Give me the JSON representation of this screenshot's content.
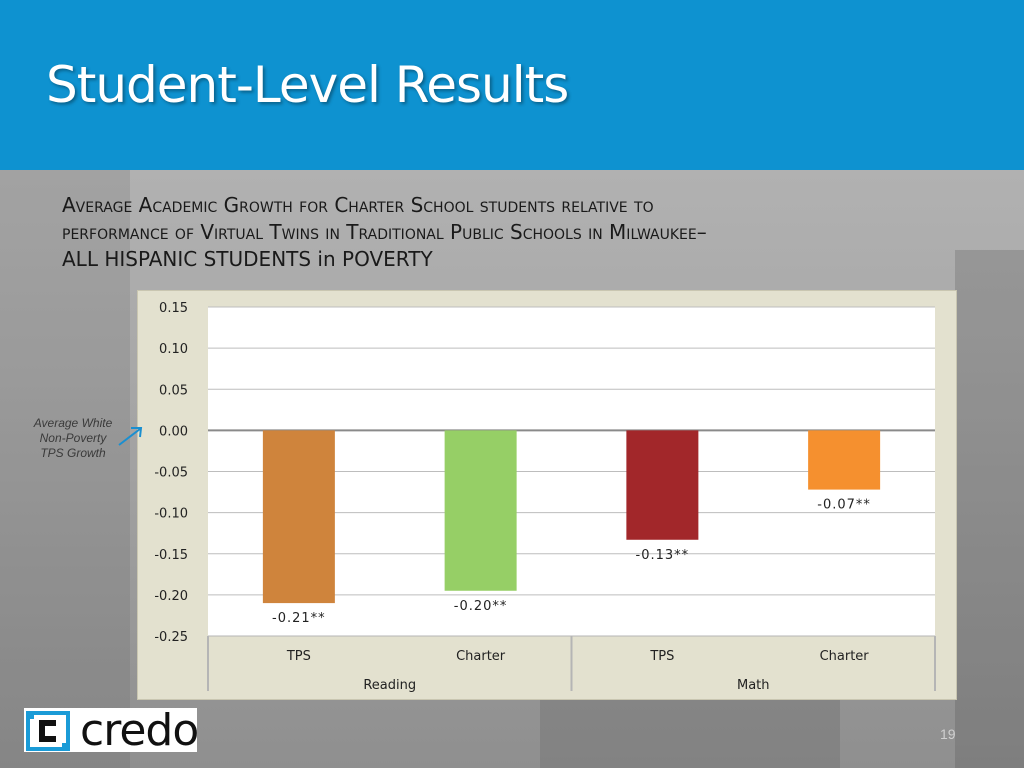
{
  "slide": {
    "title": "Student-Level Results",
    "subtitle_lines": [
      "Average Academic Growth for Charter School students relative to",
      "performance of Virtual Twins in Traditional Public Schools in Milwaukee–",
      "ALL HISPANIC STUDENTS in POVERTY"
    ],
    "annotation": "Average White Non-Poverty TPS Growth",
    "logo_text": "credo",
    "page_number": "19"
  },
  "colors": {
    "header": "#0e92d0",
    "plot_bg": "#ffffff",
    "frame_bg": "#e3e1cf"
  },
  "chart_data": {
    "type": "bar",
    "categories": [
      "TPS",
      "Charter",
      "TPS",
      "Charter"
    ],
    "groups": [
      {
        "label": "Reading",
        "categories": [
          "TPS",
          "Charter"
        ]
      },
      {
        "label": "Math",
        "categories": [
          "TPS",
          "Charter"
        ]
      }
    ],
    "values": [
      -0.21,
      -0.195,
      -0.133,
      -0.072
    ],
    "data_labels": [
      "-0.21**",
      "-0.20**",
      "-0.13**",
      "-0.07**"
    ],
    "bar_colors": [
      "#cf843c",
      "#96cf66",
      "#a2272a",
      "#f5902f"
    ],
    "ylim": [
      -0.25,
      0.15
    ],
    "yticks": [
      0.15,
      0.1,
      0.05,
      0.0,
      -0.05,
      -0.1,
      -0.15,
      -0.2,
      -0.25
    ],
    "ytick_labels": [
      "0.15",
      "0.10",
      "0.05",
      "0.00",
      "-0.05",
      "-0.10",
      "-0.15",
      "-0.20",
      "-0.25"
    ],
    "grid": true,
    "title": "",
    "xlabel": "",
    "ylabel": ""
  }
}
